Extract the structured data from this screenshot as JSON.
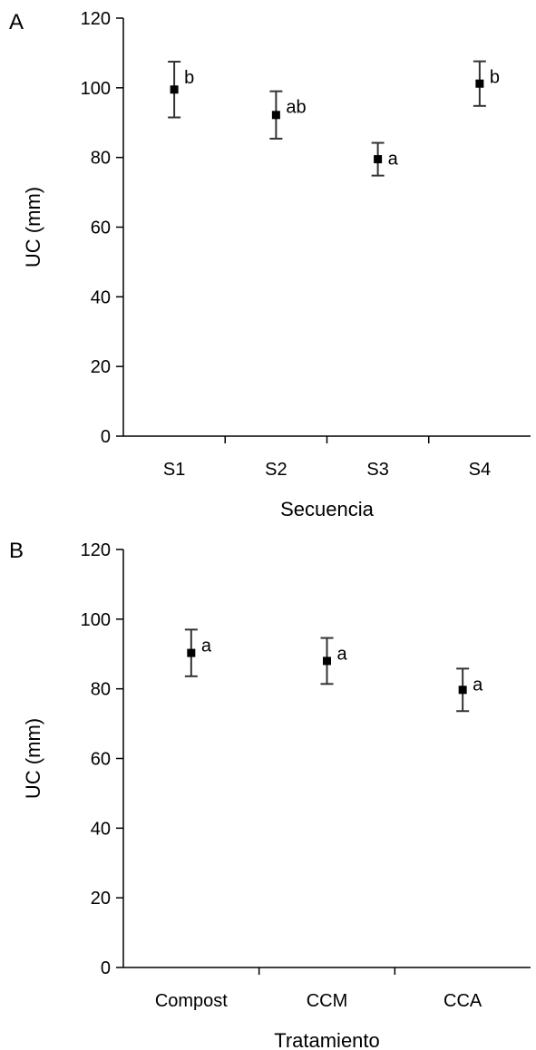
{
  "chart_data": [
    {
      "type": "scatter",
      "panel_label": "A",
      "title": "",
      "xlabel": "Secuencia",
      "ylabel": "UC (mm)",
      "categories": [
        "S1",
        "S2",
        "S3",
        "S4"
      ],
      "ylim": [
        0,
        120
      ],
      "yticks": [
        0,
        20,
        40,
        60,
        80,
        100,
        120
      ],
      "grid": false,
      "legend": "none",
      "series": [
        {
          "values": [
            99.5,
            92.2,
            79.5,
            101.2
          ],
          "error": [
            8.0,
            6.8,
            4.7,
            6.4
          ],
          "labels": [
            "b",
            "ab",
            "a",
            "b"
          ]
        }
      ]
    },
    {
      "type": "scatter",
      "panel_label": "B",
      "title": "",
      "xlabel": "Tratamiento",
      "ylabel": "UC (mm)",
      "categories": [
        "Compost",
        "CCM",
        "CCA"
      ],
      "ylim": [
        0,
        120
      ],
      "yticks": [
        0,
        20,
        40,
        60,
        80,
        100,
        120
      ],
      "grid": false,
      "legend": "none",
      "series": [
        {
          "values": [
            90.3,
            88.0,
            79.7
          ],
          "error": [
            6.7,
            6.6,
            6.1
          ],
          "labels": [
            "a",
            "a",
            "a"
          ]
        }
      ]
    }
  ]
}
